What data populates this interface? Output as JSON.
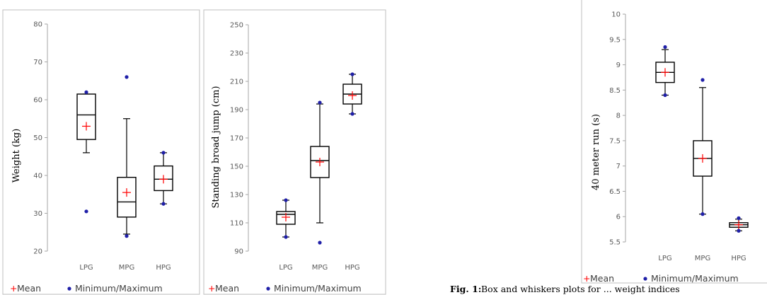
{
  "legend": {
    "mean": "Mean",
    "minmax": "Minimum/Maximum"
  },
  "caption": {
    "label": "Fig. 1:",
    "text": "Box and whiskers plots for ... weight indices"
  },
  "colors": {
    "mean": "#ff0000",
    "minmax": "#1f1fa8",
    "box": "#000000",
    "frame": "#bfbfbf"
  },
  "chart_data": [
    {
      "type": "box",
      "ylabel": "Weight (kg)",
      "categories": [
        "LPG",
        "MPG",
        "HPG"
      ],
      "ylim": [
        20,
        80
      ],
      "yticks": [
        20,
        30,
        40,
        50,
        60,
        70,
        80
      ],
      "boxes": [
        {
          "min": 30.5,
          "whisker_low": 46,
          "q1": 49.5,
          "median": 56,
          "q3": 61.5,
          "whisker_high": 61.5,
          "max": 62,
          "mean": 53
        },
        {
          "min": 24,
          "whisker_low": 24.5,
          "q1": 29,
          "median": 33,
          "q3": 39.5,
          "whisker_high": 55,
          "max": 66,
          "mean": 35.5
        },
        {
          "min": 32.5,
          "whisker_low": 32.5,
          "q1": 36,
          "median": 39,
          "q3": 42.5,
          "whisker_high": 46,
          "max": 46,
          "mean": 39
        }
      ]
    },
    {
      "type": "box",
      "ylabel": "Standing broad jump (cm)",
      "categories": [
        "LPG",
        "MPG",
        "HPG"
      ],
      "ylim": [
        90,
        250
      ],
      "yticks": [
        90,
        110,
        130,
        150,
        170,
        190,
        210,
        230,
        250
      ],
      "boxes": [
        {
          "min": 100,
          "whisker_low": 100,
          "q1": 109,
          "median": 116,
          "q3": 118,
          "whisker_high": 126,
          "max": 126,
          "mean": 114
        },
        {
          "min": 96,
          "whisker_low": 110,
          "q1": 142,
          "median": 154,
          "q3": 164,
          "whisker_high": 194,
          "max": 195,
          "mean": 153
        },
        {
          "min": 187,
          "whisker_low": 187,
          "q1": 194,
          "median": 201,
          "q3": 208,
          "whisker_high": 215,
          "max": 215,
          "mean": 200
        }
      ]
    },
    {
      "type": "box",
      "ylabel": "40 meter run (s)",
      "categories": [
        "LPG",
        "MPG",
        "HPG"
      ],
      "ylim": [
        5.5,
        10
      ],
      "yticks": [
        5.5,
        6,
        6.5,
        7,
        7.5,
        8,
        8.5,
        9,
        9.5,
        10
      ],
      "ytick_labels": [
        "5.5",
        "6",
        "6.5",
        "7",
        "7.5",
        "8",
        "8.5",
        "9",
        "9.5",
        "10"
      ],
      "boxes": [
        {
          "min": 8.4,
          "whisker_low": 8.4,
          "q1": 8.65,
          "median": 8.85,
          "q3": 9.05,
          "whisker_high": 9.3,
          "max": 9.35,
          "mean": 8.85
        },
        {
          "min": 6.05,
          "whisker_low": 6.05,
          "q1": 6.8,
          "median": 7.15,
          "q3": 7.5,
          "whisker_high": 8.55,
          "max": 8.7,
          "mean": 7.15
        },
        {
          "min": 5.72,
          "whisker_low": 5.72,
          "q1": 5.79,
          "median": 5.84,
          "q3": 5.88,
          "whisker_high": 5.95,
          "max": 5.97,
          "mean": 5.84
        }
      ]
    }
  ]
}
